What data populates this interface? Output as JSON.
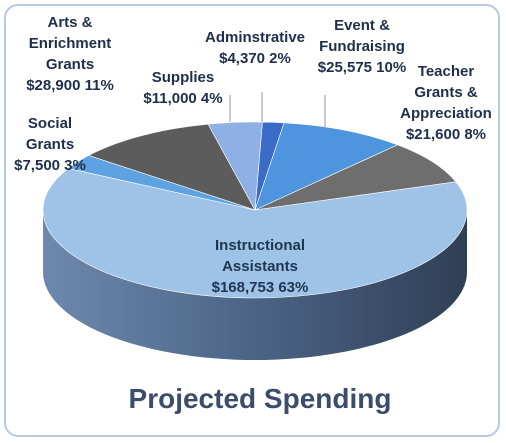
{
  "chart_data": {
    "type": "pie",
    "title": "Projected Spending",
    "slices": [
      {
        "label_lines": [
          "Adminstrative",
          "$4,370 2%"
        ],
        "value": 4370,
        "percent": 2,
        "color": "#3a6cc7"
      },
      {
        "label_lines": [
          "Event &",
          "Fundraising",
          "$25,575 10%"
        ],
        "value": 25575,
        "percent": 10,
        "color": "#4f95de"
      },
      {
        "label_lines": [
          "Teacher",
          "Grants &",
          "Appreciation",
          "$21,600 8%"
        ],
        "value": 21600,
        "percent": 8,
        "color": "#6e6e6e"
      },
      {
        "label_lines": [
          "Instructional",
          "Assistants",
          "$168,753 63%"
        ],
        "value": 168753,
        "percent": 63,
        "color": "#9fc3e7"
      },
      {
        "label_lines": [
          "Social",
          "Grants",
          "$7,500  3%"
        ],
        "value": 7500,
        "percent": 3,
        "color": "#5fa2e2"
      },
      {
        "label_lines": [
          "Arts &",
          "Enrichment",
          "Grants",
          "$28,900 11%"
        ],
        "value": 28900,
        "percent": 11,
        "color": "#5c5c5c"
      },
      {
        "label_lines": [
          "Supplies",
          "$11,000 4%"
        ],
        "value": 11000,
        "percent": 4,
        "color": "#8fb0e4"
      }
    ]
  }
}
